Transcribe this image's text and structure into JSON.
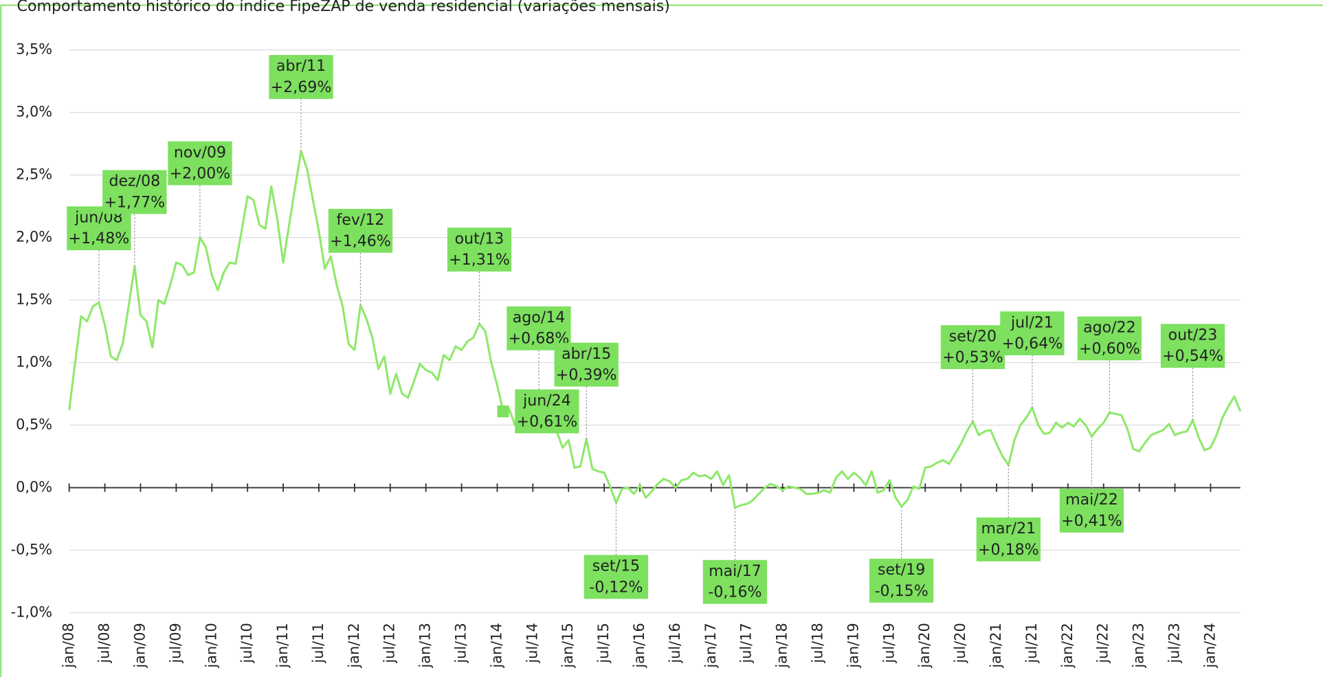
{
  "chart_data": {
    "type": "line",
    "title": "Comportamento histórico do índice FipeZAP de venda residencial (variações mensais)",
    "color": "#8ee86a",
    "grid": true,
    "ylim": [
      -1.0,
      3.5
    ],
    "yticks": [
      {
        "value": -1.0,
        "label": "-1,0%"
      },
      {
        "value": -0.5,
        "label": "-0,5%"
      },
      {
        "value": 0.0,
        "label": "0,0%"
      },
      {
        "value": 0.5,
        "label": "0,5%"
      },
      {
        "value": 1.0,
        "label": "1,0%"
      },
      {
        "value": 1.5,
        "label": "1,5%"
      },
      {
        "value": 2.0,
        "label": "2,0%"
      },
      {
        "value": 2.5,
        "label": "2,5%"
      },
      {
        "value": 3.0,
        "label": "3,0%"
      },
      {
        "value": 3.5,
        "label": "3,5%"
      }
    ],
    "categories": [
      "jan/08",
      null,
      null,
      null,
      null,
      null,
      "jul/08",
      null,
      null,
      null,
      null,
      null,
      "jan/09",
      null,
      null,
      null,
      null,
      null,
      "jul/09",
      null,
      null,
      null,
      null,
      null,
      "jan/10",
      null,
      null,
      null,
      null,
      null,
      "jul/10",
      null,
      null,
      null,
      null,
      null,
      "jan/11",
      null,
      null,
      null,
      null,
      null,
      "jul/11",
      null,
      null,
      null,
      null,
      null,
      "jan/12",
      null,
      null,
      null,
      null,
      null,
      "jul/12",
      null,
      null,
      null,
      null,
      null,
      "jan/13",
      null,
      null,
      null,
      null,
      null,
      "jul/13",
      null,
      null,
      null,
      null,
      null,
      "jan/14",
      null,
      null,
      null,
      null,
      null,
      "jul/14",
      null,
      null,
      null,
      null,
      null,
      "jan/15",
      null,
      null,
      null,
      null,
      null,
      "jul/15",
      null,
      null,
      null,
      null,
      null,
      "jan/16",
      null,
      null,
      null,
      null,
      null,
      "jul/16",
      null,
      null,
      null,
      null,
      null,
      "jan/17",
      null,
      null,
      null,
      null,
      null,
      "jul/17",
      null,
      null,
      null,
      null,
      null,
      "jan/18",
      null,
      null,
      null,
      null,
      null,
      "jul/18",
      null,
      null,
      null,
      null,
      null,
      "jan/19",
      null,
      null,
      null,
      null,
      null,
      "jul/19",
      null,
      null,
      null,
      null,
      null,
      "jan/20",
      null,
      null,
      null,
      null,
      null,
      "jul/20",
      null,
      null,
      null,
      null,
      null,
      "jan/21",
      null,
      null,
      null,
      null,
      null,
      "jul/21",
      null,
      null,
      null,
      null,
      null,
      "jan/22",
      null,
      null,
      null,
      null,
      null,
      "jul/22",
      null,
      null,
      null,
      null,
      null,
      "jan/23",
      null,
      null,
      null,
      null,
      null,
      "jul/23",
      null,
      null,
      null,
      null,
      null,
      "jan/24",
      null,
      null,
      null,
      null,
      null
    ],
    "values": [
      0.62,
      1.0,
      1.37,
      1.33,
      1.45,
      1.48,
      1.3,
      1.05,
      1.02,
      1.15,
      1.45,
      1.77,
      1.38,
      1.33,
      1.12,
      1.5,
      1.47,
      1.62,
      1.8,
      1.78,
      1.7,
      1.72,
      2.0,
      1.92,
      1.7,
      1.58,
      1.72,
      1.8,
      1.79,
      2.05,
      2.33,
      2.3,
      2.1,
      2.07,
      2.41,
      2.15,
      1.8,
      2.1,
      2.4,
      2.69,
      2.55,
      2.3,
      2.05,
      1.75,
      1.85,
      1.62,
      1.45,
      1.15,
      1.1,
      1.46,
      1.35,
      1.2,
      0.95,
      1.05,
      0.75,
      0.91,
      0.75,
      0.72,
      0.85,
      0.99,
      0.94,
      0.92,
      0.86,
      1.06,
      1.02,
      1.13,
      1.1,
      1.17,
      1.2,
      1.31,
      1.25,
      1.0,
      0.82,
      0.61,
      0.63,
      0.5,
      0.5,
      0.52,
      0.59,
      0.68,
      0.55,
      0.46,
      0.45,
      0.32,
      0.38,
      0.16,
      0.17,
      0.39,
      0.15,
      0.13,
      0.12,
      0.01,
      -0.12,
      -0.01,
      0.0,
      -0.05,
      0.02,
      -0.08,
      -0.03,
      0.03,
      0.07,
      0.05,
      0.0,
      0.06,
      0.07,
      0.12,
      0.09,
      0.1,
      0.07,
      0.13,
      0.02,
      0.1,
      -0.16,
      -0.14,
      -0.13,
      -0.1,
      -0.05,
      0.0,
      0.03,
      0.01,
      -0.02,
      0.01,
      0.0,
      -0.01,
      -0.05,
      -0.05,
      -0.04,
      -0.02,
      -0.04,
      0.08,
      0.13,
      0.07,
      0.12,
      0.08,
      0.02,
      0.13,
      -0.04,
      -0.02,
      0.06,
      -0.08,
      -0.15,
      -0.1,
      0.01,
      -0.01,
      0.16,
      0.17,
      0.2,
      0.22,
      0.19,
      0.27,
      0.35,
      0.45,
      0.53,
      0.42,
      0.45,
      0.46,
      0.35,
      0.25,
      0.18,
      0.38,
      0.5,
      0.56,
      0.64,
      0.5,
      0.43,
      0.44,
      0.52,
      0.48,
      0.52,
      0.49,
      0.55,
      0.5,
      0.41,
      0.47,
      0.52,
      0.6,
      0.59,
      0.58,
      0.47,
      0.31,
      0.29,
      0.36,
      0.42,
      0.44,
      0.46,
      0.51,
      0.42,
      0.44,
      0.45,
      0.54,
      0.4,
      0.3,
      0.32,
      0.42,
      0.56,
      0.65,
      0.73,
      0.61
    ],
    "annotations": [
      {
        "label": "jun/08",
        "value": 1.48,
        "value_label": "+1,48%",
        "placement": "above"
      },
      {
        "label": "dez/08",
        "value": 1.77,
        "value_label": "+1,77%",
        "placement": "above"
      },
      {
        "label": "nov/09",
        "value": 2.0,
        "value_label": "+2,00%",
        "placement": "above"
      },
      {
        "label": "abr/11",
        "value": 2.69,
        "value_label": "+2,69%",
        "placement": "above"
      },
      {
        "label": "fev/12",
        "value": 1.46,
        "value_label": "+1,46%",
        "placement": "above"
      },
      {
        "label": "out/13",
        "value": 1.31,
        "value_label": "+1,31%",
        "placement": "above"
      },
      {
        "label": "ago/14",
        "value": 0.68,
        "value_label": "+0,68%",
        "placement": "above"
      },
      {
        "label": "abr/15",
        "value": 0.39,
        "value_label": "+0,39%",
        "placement": "above"
      },
      {
        "label": "set/15",
        "value": -0.12,
        "value_label": "-0,12%",
        "placement": "below"
      },
      {
        "label": "mai/17",
        "value": -0.16,
        "value_label": "-0,16%",
        "placement": "below"
      },
      {
        "label": "set/19",
        "value": -0.15,
        "value_label": "-0,15%",
        "placement": "below"
      },
      {
        "label": "set/20",
        "value": 0.53,
        "value_label": "+0,53%",
        "placement": "above"
      },
      {
        "label": "mar/21",
        "value": 0.18,
        "value_label": "+0,18%",
        "placement": "below"
      },
      {
        "label": "jul/21",
        "value": 0.64,
        "value_label": "+0,64%",
        "placement": "above"
      },
      {
        "label": "mai/22",
        "value": 0.41,
        "value_label": "+0,41%",
        "placement": "below"
      },
      {
        "label": "ago/22",
        "value": 0.6,
        "value_label": "+0,60%",
        "placement": "above"
      },
      {
        "label": "out/23",
        "value": 0.54,
        "value_label": "+0,54%",
        "placement": "above"
      },
      {
        "label": "jun/24",
        "value": 0.61,
        "value_label": "+0,61%",
        "placement": "right"
      }
    ]
  }
}
